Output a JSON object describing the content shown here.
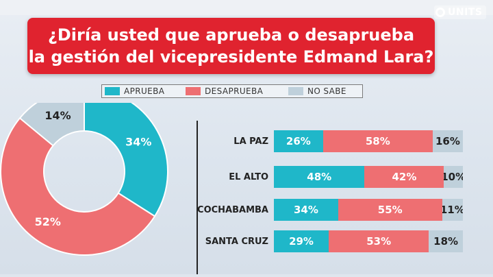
{
  "logo_text": "UNITS",
  "title": "¿Diría usted que aprueba o desaprueba\nla gestión del vicepresidente Edmand Lara?",
  "legend": {
    "aprueba": "APRUEBA",
    "desaprueba": "DESAPRUEBA",
    "nosabe": "NO SABE"
  },
  "colors": {
    "aprueba": "#1fb7c9",
    "desaprueba": "#ee6f72",
    "nosabe": "#bfd0db",
    "title_bg": "#e0232f"
  },
  "chart_data": [
    {
      "type": "pie",
      "variant": "donut",
      "categories": [
        "APRUEBA",
        "DESAPRUEBA",
        "NO SABE"
      ],
      "values": [
        34,
        52,
        14
      ],
      "labels": [
        "34%",
        "52%",
        "14%"
      ]
    },
    {
      "type": "bar",
      "orientation": "horizontal",
      "stacked": true,
      "categories": [
        "LA PAZ",
        "EL ALTO",
        "COCHABAMBA",
        "SANTA CRUZ"
      ],
      "series": [
        {
          "name": "APRUEBA",
          "values": [
            26,
            48,
            34,
            29
          ],
          "labels": [
            "26%",
            "48%",
            "34%",
            "29%"
          ]
        },
        {
          "name": "DESAPRUEBA",
          "values": [
            58,
            42,
            55,
            53
          ],
          "labels": [
            "58%",
            "42%",
            "55%",
            "53%"
          ]
        },
        {
          "name": "NO SABE",
          "values": [
            16,
            10,
            11,
            18
          ],
          "labels": [
            "16%",
            "10%",
            "11%",
            "18%"
          ]
        }
      ]
    }
  ]
}
